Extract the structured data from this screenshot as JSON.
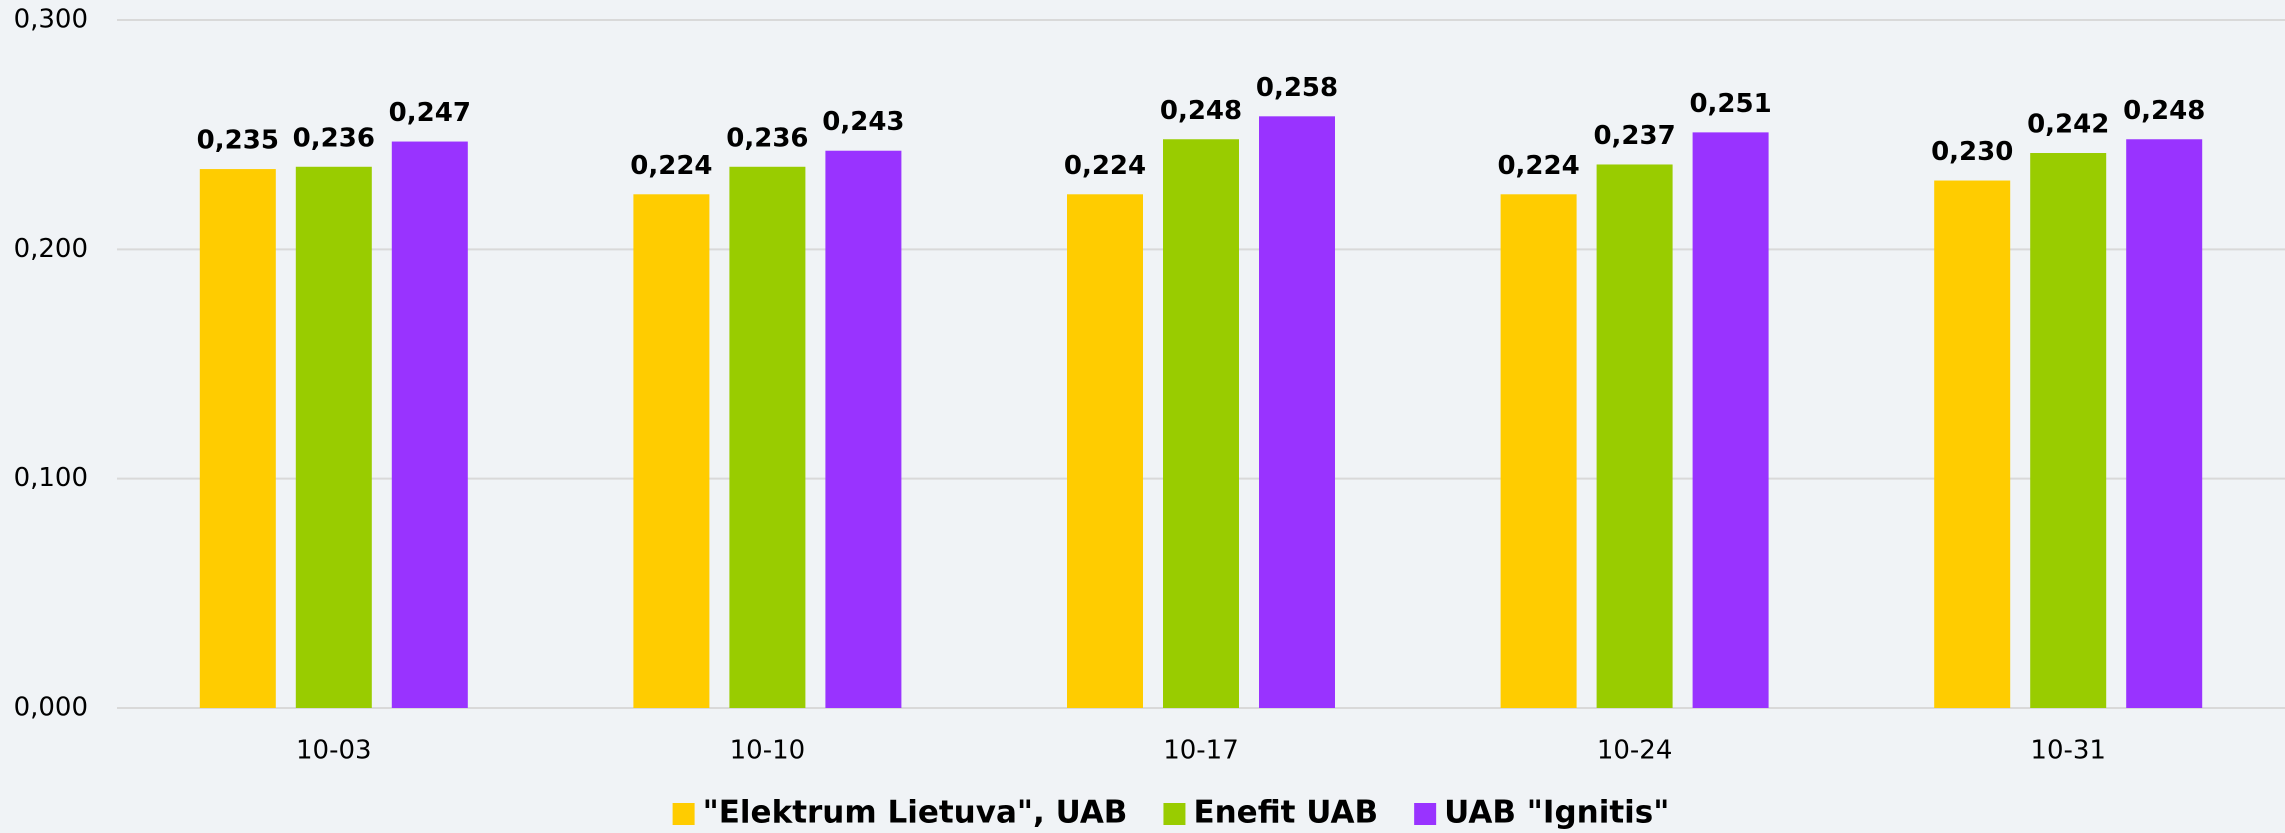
{
  "chart_data": {
    "type": "bar",
    "categories": [
      "10-03",
      "10-10",
      "10-17",
      "10-24",
      "10-31"
    ],
    "series": [
      {
        "name": "\"Elektrum Lietuva\", UAB",
        "color": "#FFCC00",
        "label_color": "#FFC000",
        "values": [
          0.235,
          0.224,
          0.224,
          0.224,
          0.23
        ],
        "value_labels": [
          "0,235",
          "0,224",
          "0,224",
          "0,224",
          "0,230"
        ]
      },
      {
        "name": "Enefit UAB",
        "color": "#99CC00",
        "label_color": "#92D050",
        "values": [
          0.236,
          0.236,
          0.248,
          0.237,
          0.242
        ],
        "value_labels": [
          "0,236",
          "0,236",
          "0,248",
          "0,237",
          "0,242"
        ]
      },
      {
        "name": "UAB \"Ignitis\"",
        "color": "#9933FF",
        "label_color": "#7030A0",
        "values": [
          0.247,
          0.243,
          0.258,
          0.251,
          0.248
        ],
        "value_labels": [
          "0,247",
          "0,243",
          "0,258",
          "0,251",
          "0,248"
        ]
      }
    ],
    "ylim": [
      0,
      0.3
    ],
    "yticks": [
      {
        "value": 0,
        "label": "0,000"
      },
      {
        "value": 0.1,
        "label": "0,100"
      },
      {
        "value": 0.2,
        "label": "0,200"
      },
      {
        "value": 0.3,
        "label": "0,300"
      }
    ],
    "grid": true,
    "legend": "bottom"
  }
}
